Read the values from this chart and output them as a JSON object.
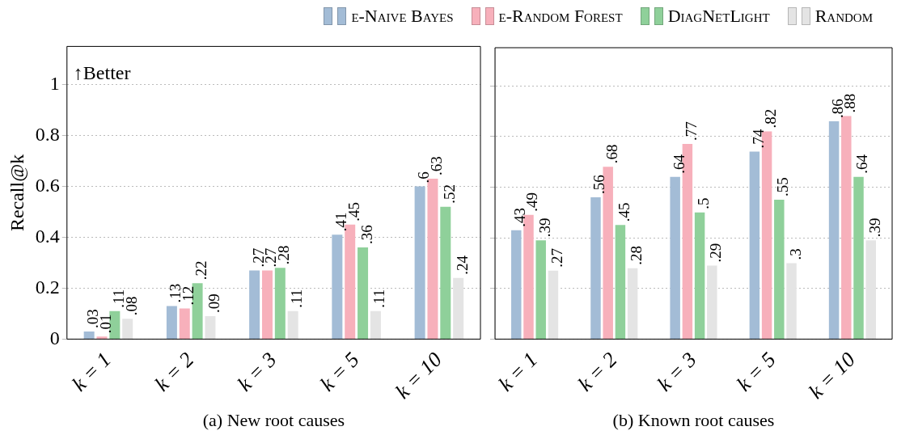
{
  "chart_data": [
    {
      "type": "bar",
      "xlabel": "(a) New root causes",
      "ylabel": "Recall@k",
      "categories": [
        "k = 1",
        "k = 2",
        "k = 3",
        "k = 5",
        "k = 10"
      ],
      "series": [
        {
          "name": "e-Naive Bayes",
          "color": "#a3bcd6",
          "values": [
            0.03,
            0.13,
            0.27,
            0.41,
            0.6
          ],
          "value_labels": [
            ".03",
            ".13",
            ".27",
            ".41",
            ".6"
          ]
        },
        {
          "name": "e-Random Forest",
          "color": "#f7b0bb",
          "values": [
            0.01,
            0.12,
            0.27,
            0.45,
            0.63
          ],
          "value_labels": [
            ".01",
            ".12",
            ".27",
            ".45",
            ".63"
          ]
        },
        {
          "name": "DiagNetLight",
          "color": "#8fd09a",
          "values": [
            0.11,
            0.22,
            0.28,
            0.36,
            0.52
          ],
          "value_labels": [
            ".11",
            ".22",
            ".28",
            ".36",
            ".52"
          ]
        },
        {
          "name": "Random",
          "color": "#e4e4e4",
          "values": [
            0.08,
            0.09,
            0.11,
            0.11,
            0.24
          ],
          "value_labels": [
            ".08",
            ".09",
            ".11",
            ".11",
            ".24"
          ]
        }
      ],
      "ylim": [
        0,
        1.15
      ],
      "yticks": [
        0,
        0.2,
        0.4,
        0.6,
        0.8,
        1
      ],
      "grid": "y",
      "legend": "top",
      "annotations": [
        "↑Better"
      ]
    },
    {
      "type": "bar",
      "xlabel": "(b) Known root causes",
      "categories": [
        "k = 1",
        "k = 2",
        "k = 3",
        "k = 5",
        "k = 10"
      ],
      "series": [
        {
          "name": "e-Naive Bayes",
          "color": "#a3bcd6",
          "values": [
            0.43,
            0.56,
            0.64,
            0.74,
            0.86
          ],
          "value_labels": [
            ".43",
            ".56",
            ".64",
            ".74",
            ".86"
          ]
        },
        {
          "name": "e-Random Forest",
          "color": "#f7b0bb",
          "values": [
            0.49,
            0.68,
            0.77,
            0.82,
            0.88
          ],
          "value_labels": [
            ".49",
            ".68",
            ".77",
            ".82",
            ".88"
          ]
        },
        {
          "name": "DiagNetLight",
          "color": "#8fd09a",
          "values": [
            0.39,
            0.45,
            0.5,
            0.55,
            0.64
          ],
          "value_labels": [
            ".39",
            ".45",
            ".5",
            ".55",
            ".64"
          ]
        },
        {
          "name": "Random",
          "color": "#e4e4e4",
          "values": [
            0.27,
            0.28,
            0.29,
            0.3,
            0.39
          ],
          "value_labels": [
            ".27",
            ".28",
            ".29",
            ".3",
            ".39"
          ]
        }
      ],
      "ylim": [
        0,
        1.15
      ],
      "yticks": [
        0,
        0.2,
        0.4,
        0.6,
        0.8,
        1
      ],
      "grid": "y",
      "legend": "top",
      "tick_labels": "x"
    }
  ]
}
